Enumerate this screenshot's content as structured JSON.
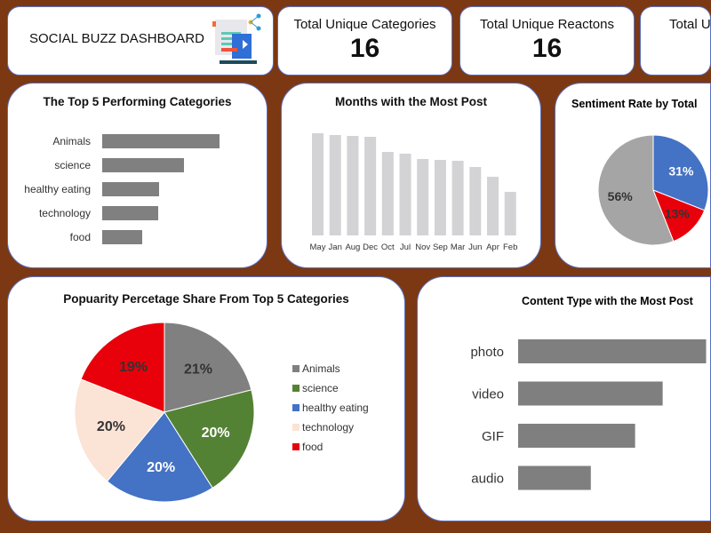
{
  "dashboard": {
    "title": "SOCIAL BUZZ DASHBOARD",
    "logo_icon": "social-media-document-icon"
  },
  "kpis": [
    {
      "label": "Total Unique Categories",
      "value": "16"
    },
    {
      "label": "Total Unique Reactons",
      "value": "16"
    },
    {
      "label": "Total U",
      "value": ""
    }
  ],
  "chart_data": [
    {
      "type": "bar",
      "orientation": "horizontal",
      "title": "The Top 5 Performing Categories",
      "categories": [
        "Animals",
        "science",
        "healthy eating",
        "technology",
        "food"
      ],
      "values": [
        132,
        92,
        64,
        63,
        45
      ],
      "color": "#808080"
    },
    {
      "type": "bar",
      "title": "Months with the Most Post",
      "categories": [
        "May",
        "Jan",
        "Aug",
        "Dec",
        "Oct",
        "Jul",
        "Nov",
        "Sep",
        "Mar",
        "Jun",
        "Apr",
        "Feb"
      ],
      "values": [
        115,
        113,
        112,
        111,
        94,
        92,
        86,
        85,
        84,
        77,
        66,
        49
      ],
      "color": "#d3d2d4"
    },
    {
      "type": "pie",
      "title": "Sentiment Rate by Total",
      "slices": [
        {
          "value": 31,
          "label": "31%",
          "color": "#4472c4"
        },
        {
          "value": 13,
          "label": "13%",
          "color": "#e8000b"
        },
        {
          "value": 56,
          "label": "56%",
          "color": "#a5a5a5"
        }
      ]
    },
    {
      "type": "pie",
      "title": "Popuarity Percetage Share From Top 5 Categories",
      "legend": "right",
      "slices": [
        {
          "name": "Animals",
          "value": 21,
          "label": "21%",
          "color": "#808080"
        },
        {
          "name": "science",
          "value": 20,
          "label": "20%",
          "color": "#548235"
        },
        {
          "name": "healthy eating",
          "value": 20,
          "label": "20%",
          "color": "#4472c4"
        },
        {
          "name": "technology",
          "value": 20,
          "label": "20%",
          "color": "#fbe3d6"
        },
        {
          "name": "food",
          "value": 19,
          "label": "19%",
          "color": "#e8000b"
        }
      ]
    },
    {
      "type": "bar",
      "orientation": "horizontal",
      "title": "Content Type with the Most Post",
      "categories": [
        "photo",
        "video",
        "GIF",
        "audio"
      ],
      "values": [
        225,
        173,
        140,
        87
      ],
      "color": "#7f7f7f"
    }
  ]
}
